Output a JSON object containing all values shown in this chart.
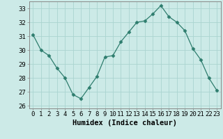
{
  "x": [
    0,
    1,
    2,
    3,
    4,
    5,
    6,
    7,
    8,
    9,
    10,
    11,
    12,
    13,
    14,
    15,
    16,
    17,
    18,
    19,
    20,
    21,
    22,
    23
  ],
  "y": [
    31.1,
    30.0,
    29.6,
    28.7,
    28.0,
    26.8,
    26.5,
    27.3,
    28.1,
    29.5,
    29.6,
    30.6,
    31.3,
    32.0,
    32.1,
    32.6,
    33.2,
    32.4,
    32.0,
    31.4,
    30.1,
    29.3,
    28.0,
    27.1
  ],
  "line_color": "#2e7d6e",
  "marker": "D",
  "marker_size": 2.5,
  "bg_color": "#cceae7",
  "grid_color": "#aad4d0",
  "xlabel": "Humidex (Indice chaleur)",
  "ylim": [
    25.8,
    33.5
  ],
  "xlim": [
    -0.5,
    23.5
  ],
  "yticks": [
    26,
    27,
    28,
    29,
    30,
    31,
    32,
    33
  ],
  "xticks": [
    0,
    1,
    2,
    3,
    4,
    5,
    6,
    7,
    8,
    9,
    10,
    11,
    12,
    13,
    14,
    15,
    16,
    17,
    18,
    19,
    20,
    21,
    22,
    23
  ],
  "tick_fontsize": 6.5,
  "label_fontsize": 7.5,
  "spine_color": "#888888"
}
